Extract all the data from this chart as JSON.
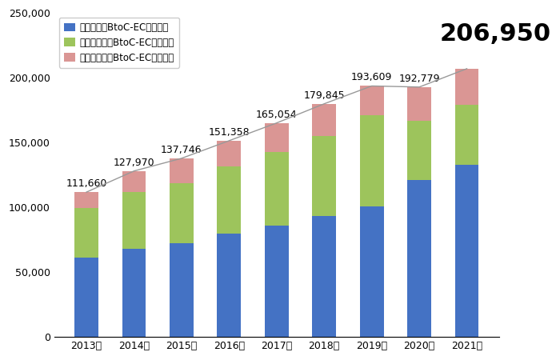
{
  "years": [
    "2013年",
    "2014年",
    "2015年",
    "2016年",
    "2017年",
    "2018年",
    "2019年",
    "2020年",
    "2021年"
  ],
  "totals": [
    111660,
    127970,
    137746,
    151358,
    165054,
    179845,
    193609,
    192779,
    206950
  ],
  "blue": [
    60950,
    68042,
    72398,
    79428,
    86008,
    92992,
    100603,
    120750,
    132865
  ],
  "green": [
    38394,
    43965,
    46184,
    52118,
    56387,
    61765,
    70322,
    45782,
    46043
  ],
  "pink": [
    12316,
    15963,
    19164,
    19812,
    22659,
    25088,
    22684,
    26247,
    28042
  ],
  "blue_color": "#4472C4",
  "green_color": "#9DC45C",
  "pink_color": "#DA9694",
  "legend_labels": [
    "物販系分野BtoC-EC市場規模",
    "サービス分野BtoC-EC市場規模",
    "デジタル分野BtoC-EC市場規模"
  ],
  "ylim": [
    0,
    250000
  ],
  "yticks": [
    0,
    50000,
    100000,
    150000,
    200000,
    250000
  ],
  "line_color": "#999999",
  "last_label_fontsize": 22,
  "total_fontsize": 9,
  "fig_width": 7.0,
  "fig_height": 4.5,
  "dpi": 100
}
